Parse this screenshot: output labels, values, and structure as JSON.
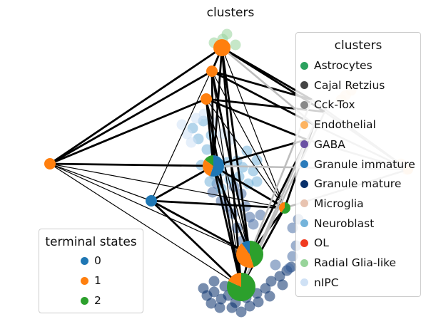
{
  "title": "clusters",
  "cluster_legend": {
    "title": "clusters",
    "items": [
      {
        "label": "Astrocytes",
        "color": "#2ca25f"
      },
      {
        "label": "Cajal Retzius",
        "color": "#444444"
      },
      {
        "label": "Cck-Tox",
        "color": "#888888"
      },
      {
        "label": "Endothelial",
        "color": "#fdb462"
      },
      {
        "label": "GABA",
        "color": "#6a51a3"
      },
      {
        "label": "Granule immature",
        "color": "#2b7bba"
      },
      {
        "label": "Granule mature",
        "color": "#08306b"
      },
      {
        "label": "Microglia",
        "color": "#e8c3b0"
      },
      {
        "label": "Neuroblast",
        "color": "#74b3da"
      },
      {
        "label": "OL",
        "color": "#f03b20"
      },
      {
        "label": "Radial Glia-like",
        "color": "#98d49a"
      },
      {
        "label": "nIPC",
        "color": "#cfe1f5"
      }
    ]
  },
  "terminal_legend": {
    "title": "terminal states",
    "items": [
      {
        "label": "0",
        "color": "#1f77b4"
      },
      {
        "label": "1",
        "color": "#ff7f0e"
      },
      {
        "label": "2",
        "color": "#2ca02c"
      }
    ]
  }
}
